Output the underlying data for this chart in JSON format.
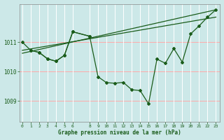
{
  "title": "Graphe pression niveau de la mer (hPa)",
  "bg_color": "#cce8e8",
  "grid_h_color": "#ffaaaa",
  "grid_v_color": "#ffffff",
  "line_color": "#1a5c1a",
  "x_ticks": [
    0,
    1,
    2,
    3,
    4,
    5,
    6,
    8,
    9,
    10,
    11,
    12,
    13,
    14,
    15,
    16,
    17,
    18,
    19,
    20,
    21,
    22,
    23
  ],
  "x_tick_labels": [
    "0",
    "1",
    "2",
    "3",
    "4",
    "5",
    "6",
    "8",
    "9",
    "10",
    "11",
    "12",
    "13",
    "14",
    "15",
    "16",
    "17",
    "18",
    "19",
    "20",
    "21",
    "22",
    "23"
  ],
  "ylim": [
    1008.3,
    1012.3
  ],
  "yticks": [
    1009,
    1010,
    1011
  ],
  "xlim": [
    -0.3,
    23.5
  ],
  "line_main_x": [
    0,
    1,
    2,
    3,
    4,
    5,
    6,
    8,
    9,
    10,
    11,
    12,
    13,
    14,
    15,
    16,
    17,
    18,
    19,
    20,
    21,
    22,
    23
  ],
  "line_main_y": [
    1011.0,
    1010.72,
    1010.65,
    1010.43,
    1010.35,
    1010.55,
    1011.35,
    1011.2,
    1009.82,
    1009.62,
    1009.6,
    1009.63,
    1009.38,
    1009.35,
    1008.9,
    1010.42,
    1010.28,
    1010.78,
    1010.32,
    1011.28,
    1011.55,
    1011.85,
    1012.1
  ],
  "line_trend1_x": [
    0,
    23
  ],
  "line_trend1_y": [
    1010.72,
    1011.85
  ],
  "line_trend2_x": [
    0,
    23
  ],
  "line_trend2_y": [
    1010.62,
    1012.1
  ],
  "line_cluster_x": [
    1,
    2,
    3,
    4,
    5,
    6,
    8
  ],
  "line_cluster_y": [
    1010.72,
    1010.65,
    1010.43,
    1010.35,
    1010.55,
    1011.35,
    1011.2
  ],
  "marker": "D",
  "markersize": 2.0,
  "linewidth": 0.9
}
